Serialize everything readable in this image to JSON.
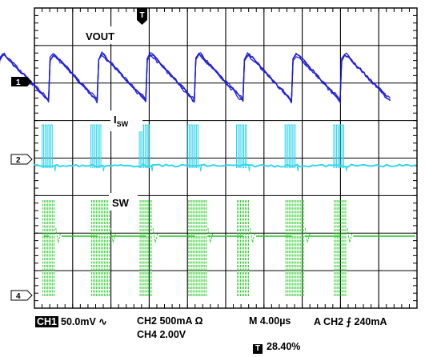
{
  "chart_data": {
    "type": "line",
    "title": "",
    "grid": true,
    "trigger_marker": "T",
    "traces": [
      {
        "channel": "1",
        "label_main": "VOUT",
        "label_sub": "",
        "color": "#1a1adc",
        "waveform": "sawtooth-ripple"
      },
      {
        "channel": "2",
        "label_main": "I",
        "label_sub": "SW",
        "color": "#33d6f0",
        "waveform": "switching-bursts"
      },
      {
        "channel": "4",
        "label_main": "SW",
        "label_sub": "",
        "color": "#22cc22",
        "waveform": "switch-node-bursts"
      }
    ],
    "burst_times_div": [
      0.37,
      1.64,
      2.91,
      4.18,
      5.45,
      6.72,
      7.99
    ],
    "settings": {
      "ch1_badge": "CH1",
      "ch1": "50.0mV",
      "ch1_coupling": "∿",
      "ch2": "CH2 500mA Ω",
      "ch4": "CH4 2.00V",
      "timebase": "M 4.00µs",
      "trigger": "A CH2",
      "trigger_slope": "⨍",
      "trigger_level": "240mA",
      "trigger_pos_badge": "T",
      "trigger_position": "28.40%"
    },
    "doc_id": "09703-051"
  }
}
